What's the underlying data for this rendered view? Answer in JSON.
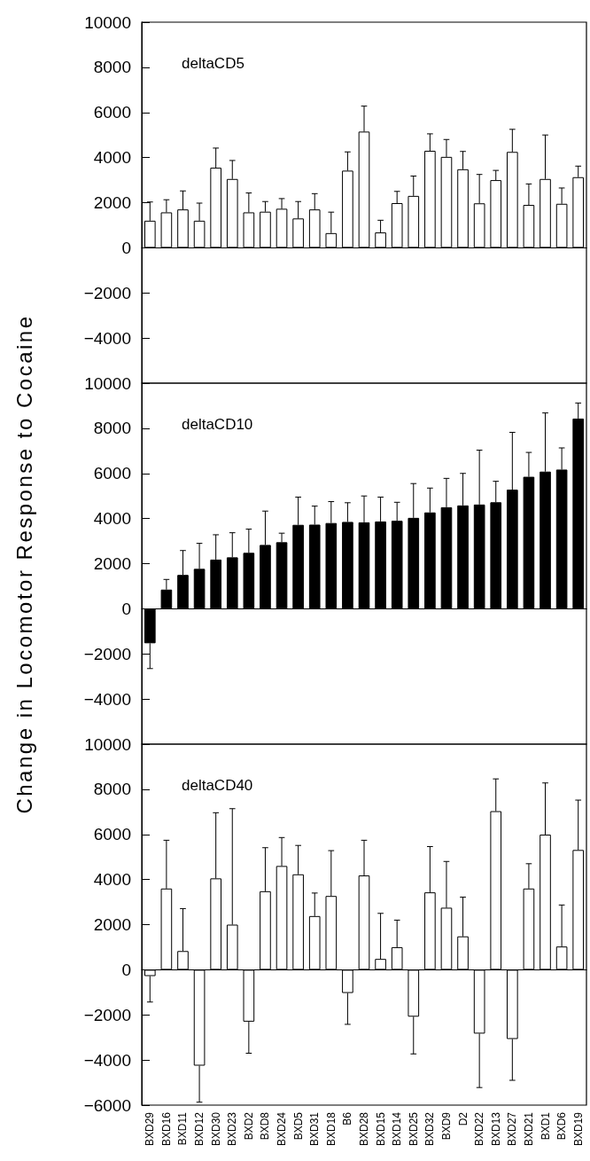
{
  "chart_data": [
    {
      "type": "bar",
      "title": "deltaCD5",
      "color": "#ffffff",
      "tick_labels": "y",
      "categories": [
        null,
        null,
        null,
        null,
        null,
        null,
        null,
        null,
        null,
        null,
        null,
        null,
        null,
        null,
        null,
        null,
        null,
        null,
        null,
        null,
        null,
        null,
        null,
        null,
        null,
        null,
        null
      ],
      "values": [
        1200,
        1570,
        1700,
        1200,
        3550,
        3050,
        1570,
        1600,
        1730,
        1300,
        1700,
        650,
        3420,
        5150,
        680,
        1980,
        2300,
        4300,
        4030,
        3480,
        1970,
        3000,
        4250,
        1900,
        3050,
        1950,
        3130
      ],
      "errors": [
        [
          1200,
          2030
        ],
        [
          1570,
          2130
        ],
        [
          1700,
          2520
        ],
        [
          1200,
          1980
        ],
        [
          3550,
          4420
        ],
        [
          3050,
          3870
        ],
        [
          1570,
          2430
        ],
        [
          1600,
          2050
        ],
        [
          1730,
          2180
        ],
        [
          1300,
          2050
        ],
        [
          1700,
          2400
        ],
        [
          650,
          1580
        ],
        [
          3420,
          4250
        ],
        [
          5150,
          6280
        ],
        [
          680,
          1220
        ],
        [
          1980,
          2500
        ],
        [
          2300,
          3180
        ],
        [
          4300,
          5050
        ],
        [
          4030,
          4800
        ],
        [
          3480,
          4270
        ],
        [
          1970,
          3250
        ],
        [
          3000,
          3430
        ],
        [
          4250,
          5250
        ],
        [
          1900,
          2830
        ],
        [
          3050,
          5000
        ],
        [
          1950,
          2650
        ],
        [
          3130,
          3620
        ]
      ],
      "ylim": [
        -6000,
        10000
      ],
      "yticks": [
        -4000,
        -2000,
        0,
        2000,
        4000,
        6000,
        8000,
        10000
      ]
    },
    {
      "type": "bar",
      "title": "deltaCD10",
      "color": "#000000",
      "tick_labels": "y",
      "ylabel": "Change in Locomotor Response to Cocaine",
      "categories": [
        null,
        null,
        null,
        null,
        null,
        null,
        null,
        null,
        null,
        null,
        null,
        null,
        null,
        null,
        null,
        null,
        null,
        null,
        null,
        null,
        null,
        null,
        null,
        null,
        null,
        null,
        null
      ],
      "values": [
        -1530,
        850,
        1500,
        1770,
        2180,
        2280,
        2480,
        2830,
        2950,
        3720,
        3730,
        3800,
        3850,
        3830,
        3870,
        3900,
        4030,
        4270,
        4500,
        4580,
        4620,
        4720,
        5280,
        5850,
        6080,
        6170,
        8430
      ],
      "errors": [
        [
          -2650,
          -1530
        ],
        [
          850,
          1300
        ],
        [
          1500,
          2580
        ],
        [
          1770,
          2900
        ],
        [
          2180,
          3280
        ],
        [
          2280,
          3370
        ],
        [
          2480,
          3530
        ],
        [
          2830,
          4330
        ],
        [
          2950,
          3350
        ],
        [
          3720,
          4950
        ],
        [
          3730,
          4550
        ],
        [
          3800,
          4750
        ],
        [
          3850,
          4700
        ],
        [
          3830,
          5000
        ],
        [
          3870,
          4950
        ],
        [
          3900,
          4720
        ],
        [
          4030,
          5550
        ],
        [
          4270,
          5350
        ],
        [
          4500,
          5780
        ],
        [
          4580,
          6000
        ],
        [
          4620,
          7030
        ],
        [
          4720,
          5650
        ],
        [
          5280,
          7820
        ],
        [
          5850,
          6930
        ],
        [
          6080,
          8680
        ],
        [
          6170,
          7130
        ],
        [
          8430,
          9120
        ]
      ],
      "ylim": [
        -6000,
        10000
      ],
      "yticks": [
        -4000,
        -2000,
        0,
        2000,
        4000,
        6000,
        8000,
        10000
      ]
    },
    {
      "type": "bar",
      "title": "deltaCD40",
      "color": "#ffffff",
      "categories": [
        "BXD29",
        "BXD16",
        "BXD11",
        "BXD12",
        "BXD30",
        "BXD23",
        "BXD2",
        "BXD8",
        "BXD24",
        "BXD5",
        "BXD31",
        "BXD18",
        "B6",
        "BXD28",
        "BXD15",
        "BXD14",
        "BXD25",
        "BXD32",
        "BXD9",
        "D2",
        "BXD22",
        "BXD13",
        "BXD27",
        "BXD21",
        "BXD1",
        "BXD6",
        "BXD19"
      ],
      "values": [
        -280,
        3600,
        830,
        -4250,
        4050,
        2000,
        -2300,
        3480,
        4600,
        4230,
        2380,
        3270,
        -1030,
        4180,
        480,
        1000,
        -2080,
        3430,
        2750,
        1480,
        -2830,
        7030,
        -3070,
        3600,
        5990,
        1030,
        5310
      ],
      "errors": [
        [
          -1430,
          -280
        ],
        [
          3600,
          5740
        ],
        [
          830,
          2710
        ],
        [
          -5870,
          -4250
        ],
        [
          4050,
          6960
        ],
        [
          2000,
          7140
        ],
        [
          -3700,
          -2300
        ],
        [
          3480,
          5410
        ],
        [
          4600,
          5860
        ],
        [
          4230,
          5510
        ],
        [
          2380,
          3400
        ],
        [
          3270,
          5280
        ],
        [
          -2420,
          -1030
        ],
        [
          4180,
          5740
        ],
        [
          480,
          2500
        ],
        [
          1000,
          2200
        ],
        [
          -3730,
          -2080
        ],
        [
          3430,
          5460
        ],
        [
          2750,
          4800
        ],
        [
          1480,
          3220
        ],
        [
          -5220,
          -2830
        ],
        [
          7030,
          8460
        ],
        [
          -4900,
          -3070
        ],
        [
          3600,
          4700
        ],
        [
          5990,
          8280
        ],
        [
          1030,
          2870
        ],
        [
          5310,
          7520
        ]
      ],
      "ylim": [
        -6000,
        10000
      ],
      "yticks": [
        -6000,
        -4000,
        -2000,
        0,
        2000,
        4000,
        6000,
        8000,
        10000
      ]
    }
  ]
}
